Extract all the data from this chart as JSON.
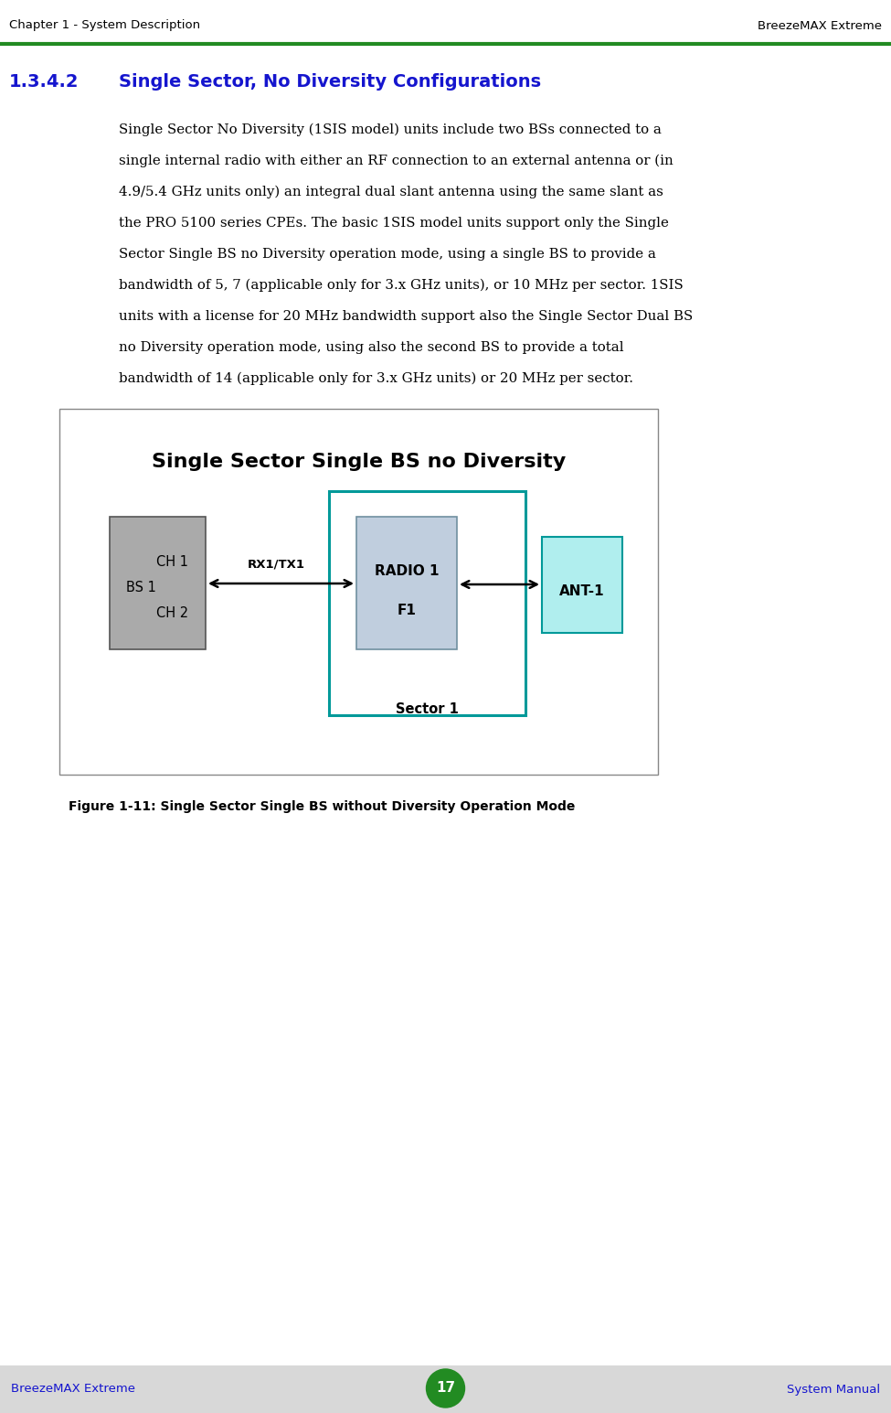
{
  "header_left": "Chapter 1 - System Description",
  "header_right": "BreezeMAX Extreme",
  "footer_left": "BreezeMAX Extreme",
  "footer_center": "17",
  "footer_right": "System Manual",
  "section_number": "1.3.4.2",
  "section_title": "Single Sector, No Diversity Configurations",
  "body_lines": [
    "Single Sector No Diversity (1SIS model) units include two BSs connected to a",
    "single internal radio with either an RF connection to an external antenna or (in",
    "4.9/5.4 GHz units only) an integral dual slant antenna using the same slant as",
    "the PRO 5100 series CPEs. The basic 1SIS model units support only the Single",
    "Sector Single BS no Diversity operation mode, using a single BS to provide a",
    "bandwidth of 5, 7 (applicable only for 3.x GHz units), or 10 MHz per sector. 1SIS",
    "units with a license for 20 MHz bandwidth support also the Single Sector Dual BS",
    "no Diversity operation mode, using also the second BS to provide a total",
    "bandwidth of 14 (applicable only for 3.x GHz units) or 20 MHz per sector."
  ],
  "figure_title": "Single Sector Single BS no Diversity",
  "figure_caption": "Figure 1-11: Single Sector Single BS without Diversity Operation Mode",
  "header_line_color": "#228B22",
  "footer_bg_color": "#D8D8D8",
  "section_title_color": "#1515CE",
  "header_footer_text_color": "#1515CE",
  "page_bg": "#FFFFFF",
  "figure_border_color": "#888888",
  "sector_border_color": "#009999",
  "bs_box_color": "#AAAAAA",
  "radio_box_color": "#C0CEDE",
  "ant_box_color": "#B0EEEE",
  "diagram_title_color": "#000000",
  "arrow_color": "#000000",
  "rx_tx_label": "RX1/TX1",
  "bs_label_ch1": "CH 1",
  "bs_label_bs1": "BS 1",
  "bs_label_ch2": "CH 2",
  "radio_label_top": "RADIO 1",
  "radio_label_bot": "F1",
  "sector_label": "Sector 1",
  "ant_label": "ANT-1"
}
